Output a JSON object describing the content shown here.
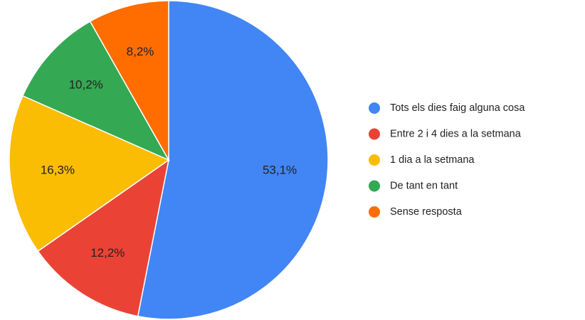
{
  "chart_data": {
    "type": "pie",
    "categories": [
      "Tots els dies faig alguna cosa",
      "Entre 2 i 4 dies a la setmana",
      "1 dia a la setmana",
      "De tant en tant",
      "Sense resposta"
    ],
    "values": [
      53.1,
      12.2,
      16.3,
      10.2,
      8.2
    ],
    "value_labels": [
      "53,1%",
      "12,2%",
      "16,3%",
      "10,2%",
      "8,2%"
    ],
    "colors": [
      "#4285f4",
      "#ea4335",
      "#fbbc04",
      "#34a853",
      "#ff6d01"
    ],
    "legend": "right"
  }
}
